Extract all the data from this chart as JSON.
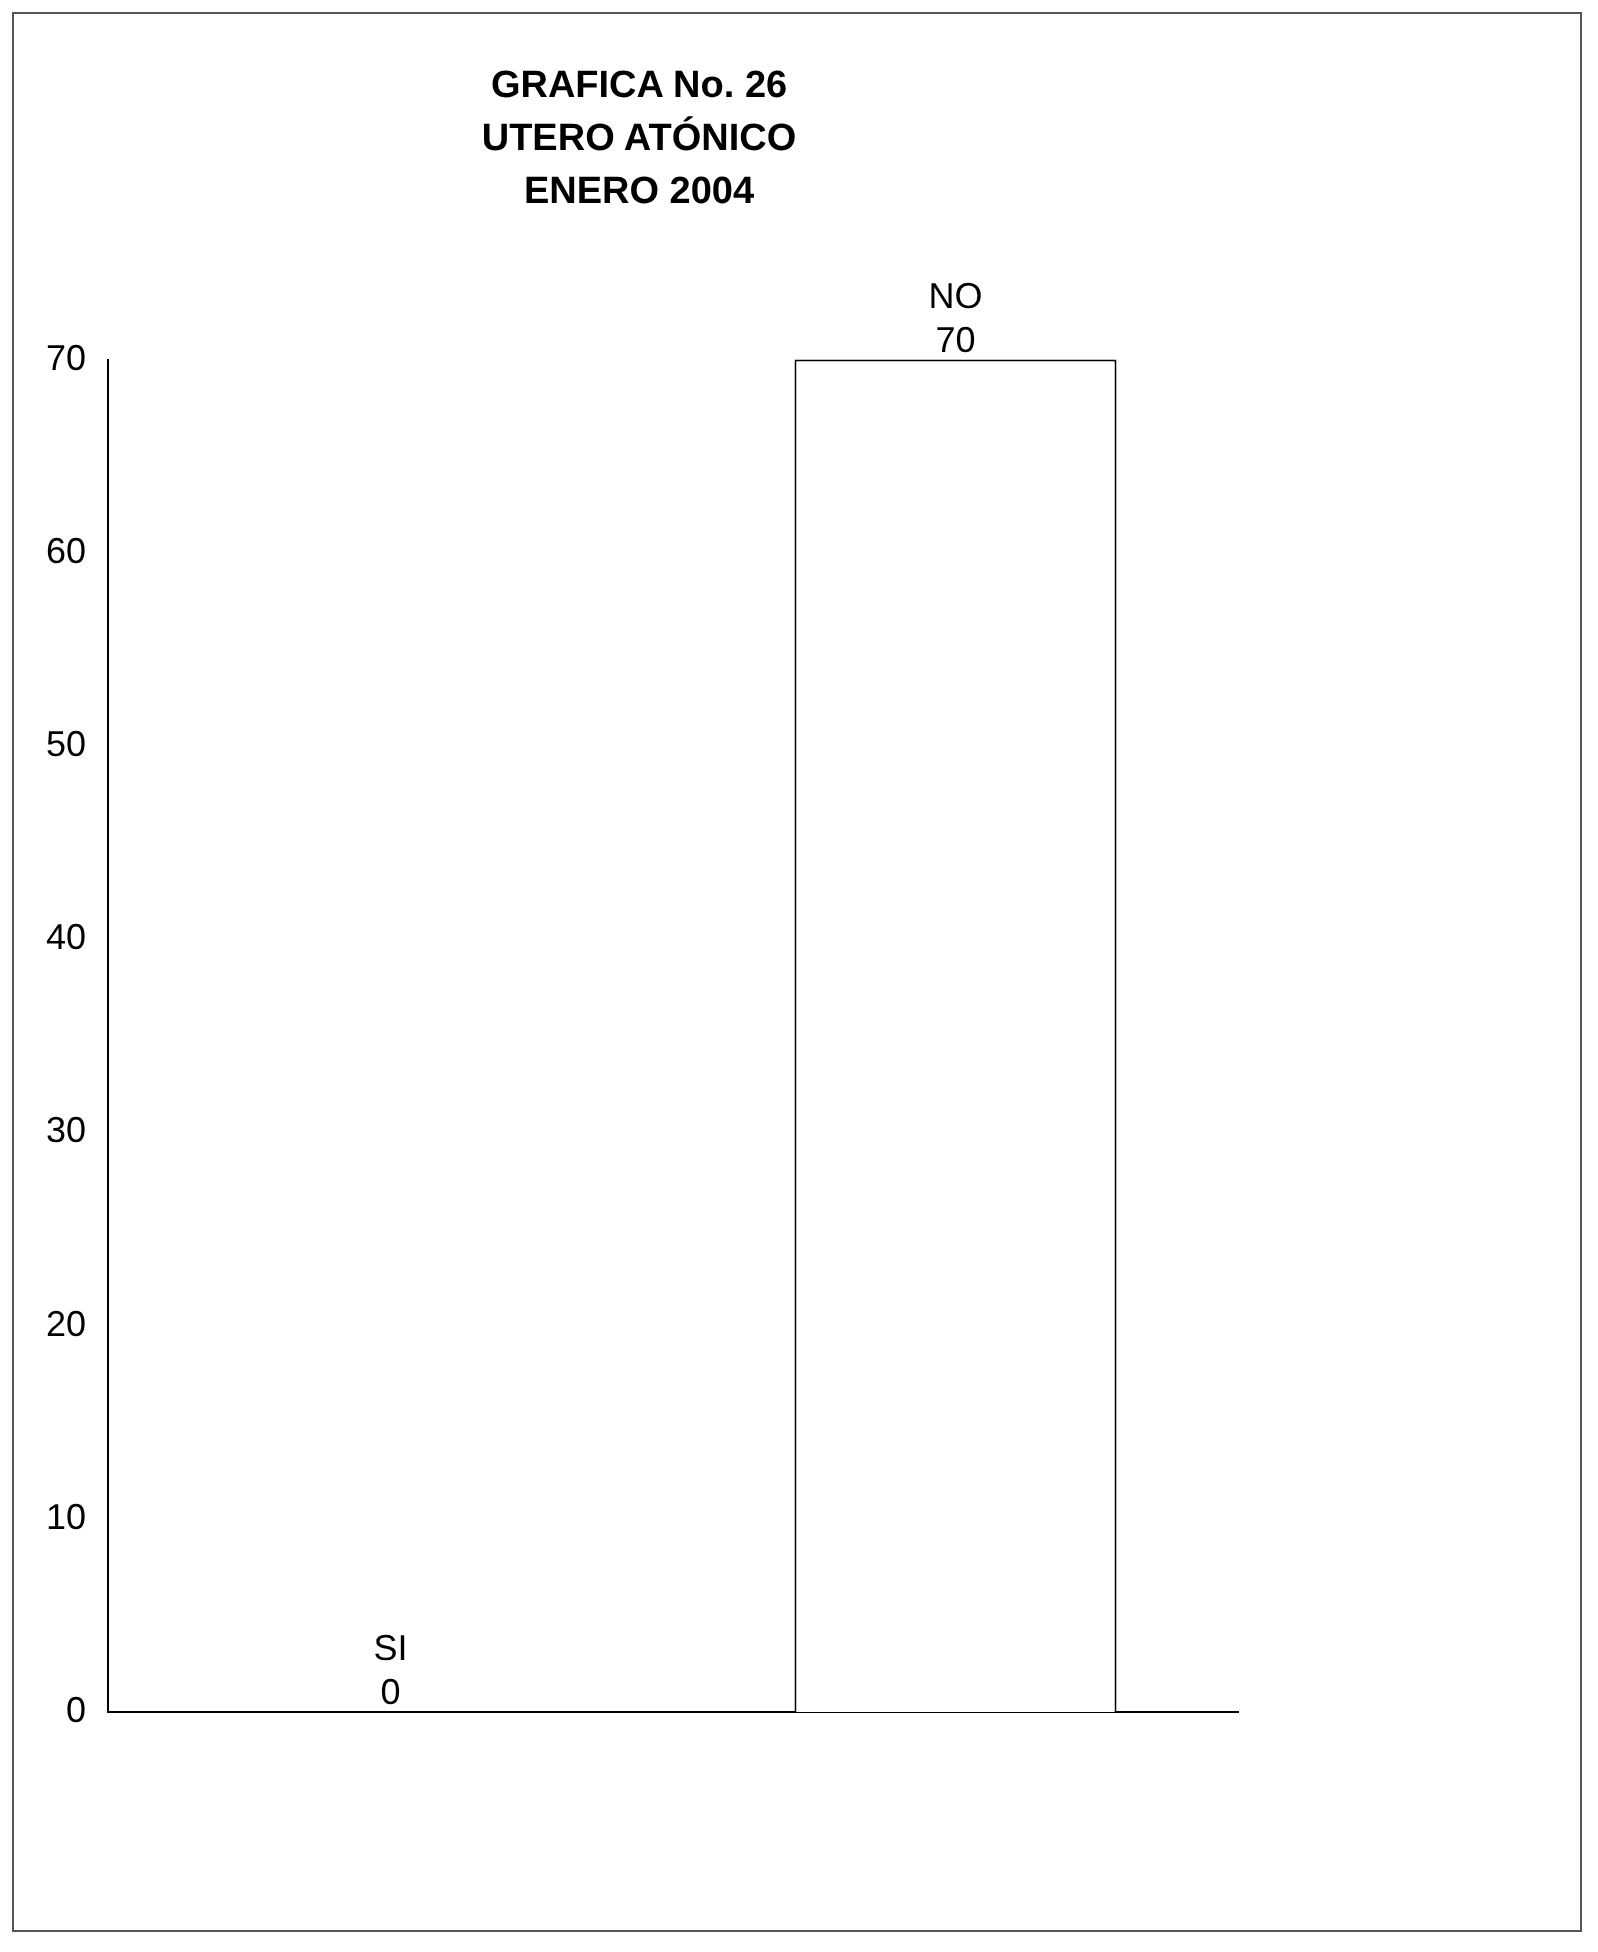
{
  "chart_data": {
    "type": "bar",
    "title": "GRAFICA No. 26\nUTERO ATÓNICO\nENERO 2004",
    "categories": [
      "SI",
      "NO"
    ],
    "values": [
      0,
      70
    ],
    "color": "#ffffff",
    "ylim": [
      0,
      70
    ],
    "yticks": [
      0,
      10,
      20,
      30,
      40,
      50,
      60,
      70
    ],
    "grid": false,
    "legend": false,
    "tick_labels": "y",
    "data_labels": true
  }
}
